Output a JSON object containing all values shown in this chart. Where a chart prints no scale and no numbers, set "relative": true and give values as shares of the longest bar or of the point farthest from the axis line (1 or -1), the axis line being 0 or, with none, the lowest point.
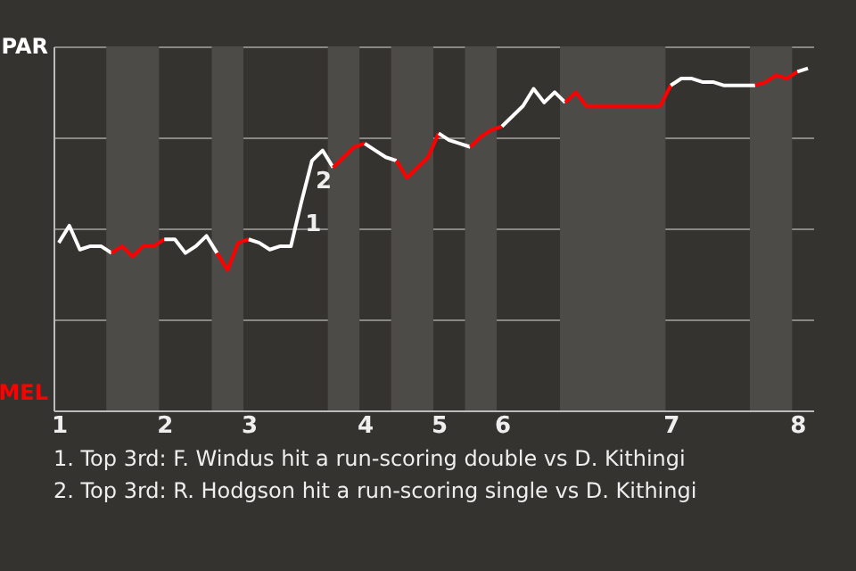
{
  "chart_data": {
    "type": "line",
    "relative": true,
    "categories": [
      "1",
      null,
      null,
      null,
      null,
      null,
      null,
      null,
      null,
      null,
      "2",
      null,
      null,
      null,
      null,
      null,
      null,
      null,
      "3",
      null,
      null,
      null,
      null,
      null,
      null,
      null,
      null,
      null,
      null,
      "4",
      null,
      null,
      null,
      null,
      null,
      null,
      "5",
      null,
      null,
      null,
      null,
      null,
      "6",
      null,
      null,
      null,
      null,
      null,
      null,
      null,
      null,
      null,
      null,
      null,
      null,
      null,
      null,
      null,
      "7",
      null,
      null,
      null,
      null,
      null,
      null,
      null,
      null,
      null,
      null,
      null,
      "8",
      null
    ],
    "grid": "y",
    "line_style": "solid",
    "series": [
      {
        "color": "#ffffff",
        "values": [
          0.49,
          0.54,
          0.47,
          0.48,
          0.48,
          0.46,
          null,
          null,
          null,
          null,
          null,
          null,
          null,
          null,
          null,
          null,
          null,
          null,
          null,
          null,
          null,
          null,
          null,
          null,
          null,
          null,
          null,
          null,
          null,
          null,
          null,
          null,
          null,
          null,
          null,
          null,
          null,
          null,
          null,
          null,
          null,
          null,
          null,
          null,
          null,
          null,
          null,
          null,
          null,
          null,
          null,
          null,
          null,
          null,
          null,
          null,
          null,
          null,
          null,
          null,
          null,
          null,
          null,
          null,
          null,
          null,
          null,
          null,
          null,
          null,
          null,
          null
        ]
      },
      {
        "color": "#ff0000",
        "values": [
          null,
          null,
          null,
          null,
          null,
          0.46,
          0.48,
          0.45,
          0.48,
          0.48,
          0.5,
          null,
          null,
          null,
          null,
          null,
          null,
          null,
          null,
          null,
          null,
          null,
          null,
          null,
          null,
          null,
          null,
          null,
          null,
          null,
          null,
          null,
          null,
          null,
          null,
          null,
          null,
          null,
          null,
          null,
          null,
          null,
          null,
          null,
          null,
          null,
          null,
          null,
          null,
          null,
          null,
          null,
          null,
          null,
          null,
          null,
          null,
          null,
          null,
          null,
          null,
          null,
          null,
          null,
          null,
          null,
          null,
          null,
          null,
          null,
          null,
          null
        ]
      },
      {
        "color": "#ffffff",
        "values": [
          null,
          null,
          null,
          null,
          null,
          null,
          null,
          null,
          null,
          null,
          0.5,
          0.5,
          0.46,
          0.48,
          0.51,
          0.46,
          null,
          null,
          null,
          null,
          null,
          null,
          null,
          null,
          null,
          null,
          null,
          null,
          null,
          null,
          null,
          null,
          null,
          null,
          null,
          null,
          null,
          null,
          null,
          null,
          null,
          null,
          null,
          null,
          null,
          null,
          null,
          null,
          null,
          null,
          null,
          null,
          null,
          null,
          null,
          null,
          null,
          null,
          null,
          null,
          null,
          null,
          null,
          null,
          null,
          null,
          null,
          null,
          null,
          null,
          null,
          null
        ]
      },
      {
        "color": "#ff0000",
        "values": [
          null,
          null,
          null,
          null,
          null,
          null,
          null,
          null,
          null,
          null,
          null,
          null,
          null,
          null,
          null,
          0.46,
          0.41,
          0.49,
          0.5,
          null,
          null,
          null,
          null,
          null,
          null,
          null,
          null,
          null,
          null,
          null,
          null,
          null,
          null,
          null,
          null,
          null,
          null,
          null,
          null,
          null,
          null,
          null,
          null,
          null,
          null,
          null,
          null,
          null,
          null,
          null,
          null,
          null,
          null,
          null,
          null,
          null,
          null,
          null,
          null,
          null,
          null,
          null,
          null,
          null,
          null,
          null,
          null,
          null,
          null,
          null,
          null,
          null
        ]
      },
      {
        "color": "#ffffff",
        "values": [
          null,
          null,
          null,
          null,
          null,
          null,
          null,
          null,
          null,
          null,
          null,
          null,
          null,
          null,
          null,
          null,
          null,
          null,
          0.5,
          0.49,
          0.47,
          0.48,
          0.48,
          0.61,
          0.73,
          0.76,
          0.71,
          null,
          null,
          null,
          null,
          null,
          null,
          null,
          null,
          null,
          null,
          null,
          null,
          null,
          null,
          null,
          null,
          null,
          null,
          null,
          null,
          null,
          null,
          null,
          null,
          null,
          null,
          null,
          null,
          null,
          null,
          null,
          null,
          null,
          null,
          null,
          null,
          null,
          null,
          null,
          null,
          null,
          null,
          null,
          null,
          null
        ]
      },
      {
        "color": "#ff0000",
        "values": [
          null,
          null,
          null,
          null,
          null,
          null,
          null,
          null,
          null,
          null,
          null,
          null,
          null,
          null,
          null,
          null,
          null,
          null,
          null,
          null,
          null,
          null,
          null,
          null,
          null,
          null,
          0.71,
          0.74,
          0.77,
          0.78,
          null,
          null,
          null,
          null,
          null,
          null,
          null,
          null,
          null,
          null,
          null,
          null,
          null,
          null,
          null,
          null,
          null,
          null,
          null,
          null,
          null,
          null,
          null,
          null,
          null,
          null,
          null,
          null,
          null,
          null,
          null,
          null,
          null,
          null,
          null,
          null,
          null,
          null,
          null,
          null,
          null,
          null
        ]
      },
      {
        "color": "#ffffff",
        "values": [
          null,
          null,
          null,
          null,
          null,
          null,
          null,
          null,
          null,
          null,
          null,
          null,
          null,
          null,
          null,
          null,
          null,
          null,
          null,
          null,
          null,
          null,
          null,
          null,
          null,
          null,
          null,
          null,
          null,
          0.78,
          0.76,
          0.74,
          0.73,
          null,
          null,
          null,
          null,
          null,
          null,
          null,
          null,
          null,
          null,
          null,
          null,
          null,
          null,
          null,
          null,
          null,
          null,
          null,
          null,
          null,
          null,
          null,
          null,
          null,
          null,
          null,
          null,
          null,
          null,
          null,
          null,
          null,
          null,
          null,
          null,
          null,
          null,
          null
        ]
      },
      {
        "color": "#ff0000",
        "values": [
          null,
          null,
          null,
          null,
          null,
          null,
          null,
          null,
          null,
          null,
          null,
          null,
          null,
          null,
          null,
          null,
          null,
          null,
          null,
          null,
          null,
          null,
          null,
          null,
          null,
          null,
          null,
          null,
          null,
          null,
          null,
          null,
          0.73,
          0.68,
          0.71,
          0.74,
          0.81,
          null,
          null,
          null,
          null,
          null,
          null,
          null,
          null,
          null,
          null,
          null,
          null,
          null,
          null,
          null,
          null,
          null,
          null,
          null,
          null,
          null,
          null,
          null,
          null,
          null,
          null,
          null,
          null,
          null,
          null,
          null,
          null,
          null,
          null,
          null
        ]
      },
      {
        "color": "#ffffff",
        "values": [
          null,
          null,
          null,
          null,
          null,
          null,
          null,
          null,
          null,
          null,
          null,
          null,
          null,
          null,
          null,
          null,
          null,
          null,
          null,
          null,
          null,
          null,
          null,
          null,
          null,
          null,
          null,
          null,
          null,
          null,
          null,
          null,
          null,
          null,
          null,
          null,
          0.81,
          0.79,
          0.78,
          0.77,
          null,
          null,
          null,
          null,
          null,
          null,
          null,
          null,
          null,
          null,
          null,
          null,
          null,
          null,
          null,
          null,
          null,
          null,
          null,
          null,
          null,
          null,
          null,
          null,
          null,
          null,
          null,
          null,
          null,
          null,
          null,
          null
        ]
      },
      {
        "color": "#ff0000",
        "values": [
          null,
          null,
          null,
          null,
          null,
          null,
          null,
          null,
          null,
          null,
          null,
          null,
          null,
          null,
          null,
          null,
          null,
          null,
          null,
          null,
          null,
          null,
          null,
          null,
          null,
          null,
          null,
          null,
          null,
          null,
          null,
          null,
          null,
          null,
          null,
          null,
          null,
          null,
          null,
          0.77,
          0.8,
          0.82,
          0.83,
          null,
          null,
          null,
          null,
          null,
          null,
          null,
          null,
          null,
          null,
          null,
          null,
          null,
          null,
          null,
          null,
          null,
          null,
          null,
          null,
          null,
          null,
          null,
          null,
          null,
          null,
          null,
          null,
          null
        ]
      },
      {
        "color": "#ffffff",
        "values": [
          null,
          null,
          null,
          null,
          null,
          null,
          null,
          null,
          null,
          null,
          null,
          null,
          null,
          null,
          null,
          null,
          null,
          null,
          null,
          null,
          null,
          null,
          null,
          null,
          null,
          null,
          null,
          null,
          null,
          null,
          null,
          null,
          null,
          null,
          null,
          null,
          null,
          null,
          null,
          null,
          null,
          null,
          0.83,
          0.86,
          0.89,
          0.94,
          0.9,
          0.93,
          0.9,
          null,
          null,
          null,
          null,
          null,
          null,
          null,
          null,
          null,
          null,
          null,
          null,
          null,
          null,
          null,
          null,
          null,
          null,
          null,
          null,
          null,
          null,
          null
        ]
      },
      {
        "color": "#ff0000",
        "values": [
          null,
          null,
          null,
          null,
          null,
          null,
          null,
          null,
          null,
          null,
          null,
          null,
          null,
          null,
          null,
          null,
          null,
          null,
          null,
          null,
          null,
          null,
          null,
          null,
          null,
          null,
          null,
          null,
          null,
          null,
          null,
          null,
          null,
          null,
          null,
          null,
          null,
          null,
          null,
          null,
          null,
          null,
          null,
          null,
          null,
          null,
          null,
          null,
          0.9,
          0.93,
          0.89,
          0.89,
          0.89,
          0.89,
          0.89,
          0.89,
          0.89,
          0.89,
          0.95,
          null,
          null,
          null,
          null,
          null,
          null,
          null,
          null,
          null,
          null,
          null,
          null,
          null
        ]
      },
      {
        "color": "#ffffff",
        "values": [
          null,
          null,
          null,
          null,
          null,
          null,
          null,
          null,
          null,
          null,
          null,
          null,
          null,
          null,
          null,
          null,
          null,
          null,
          null,
          null,
          null,
          null,
          null,
          null,
          null,
          null,
          null,
          null,
          null,
          null,
          null,
          null,
          null,
          null,
          null,
          null,
          null,
          null,
          null,
          null,
          null,
          null,
          null,
          null,
          null,
          null,
          null,
          null,
          null,
          null,
          null,
          null,
          null,
          null,
          null,
          null,
          null,
          null,
          0.95,
          0.97,
          0.97,
          0.96,
          0.96,
          0.95,
          0.95,
          0.95,
          0.95,
          null,
          null,
          null,
          null,
          null
        ]
      },
      {
        "color": "#ff0000",
        "values": [
          null,
          null,
          null,
          null,
          null,
          null,
          null,
          null,
          null,
          null,
          null,
          null,
          null,
          null,
          null,
          null,
          null,
          null,
          null,
          null,
          null,
          null,
          null,
          null,
          null,
          null,
          null,
          null,
          null,
          null,
          null,
          null,
          null,
          null,
          null,
          null,
          null,
          null,
          null,
          null,
          null,
          null,
          null,
          null,
          null,
          null,
          null,
          null,
          null,
          null,
          null,
          null,
          null,
          null,
          null,
          null,
          null,
          null,
          null,
          null,
          null,
          null,
          null,
          null,
          null,
          null,
          0.95,
          0.96,
          0.98,
          0.97,
          0.99,
          null
        ]
      },
      {
        "color": "#ffffff",
        "values": [
          null,
          null,
          null,
          null,
          null,
          null,
          null,
          null,
          null,
          null,
          null,
          null,
          null,
          null,
          null,
          null,
          null,
          null,
          null,
          null,
          null,
          null,
          null,
          null,
          null,
          null,
          null,
          null,
          null,
          null,
          null,
          null,
          null,
          null,
          null,
          null,
          null,
          null,
          null,
          null,
          null,
          null,
          null,
          null,
          null,
          null,
          null,
          null,
          null,
          null,
          null,
          null,
          null,
          null,
          null,
          null,
          null,
          null,
          null,
          null,
          null,
          null,
          null,
          null,
          null,
          null,
          null,
          null,
          null,
          null,
          0.99,
          1
        ]
      }
    ],
    "annotations": [
      "PAR",
      "MEL",
      "1",
      "2",
      "1. Top 3rd: F. Windus hit a run-scoring double vs D. Kithingi",
      "2. Top 3rd: R. Hodgson hit a run-scoring single vs D. Kithingi"
    ]
  }
}
